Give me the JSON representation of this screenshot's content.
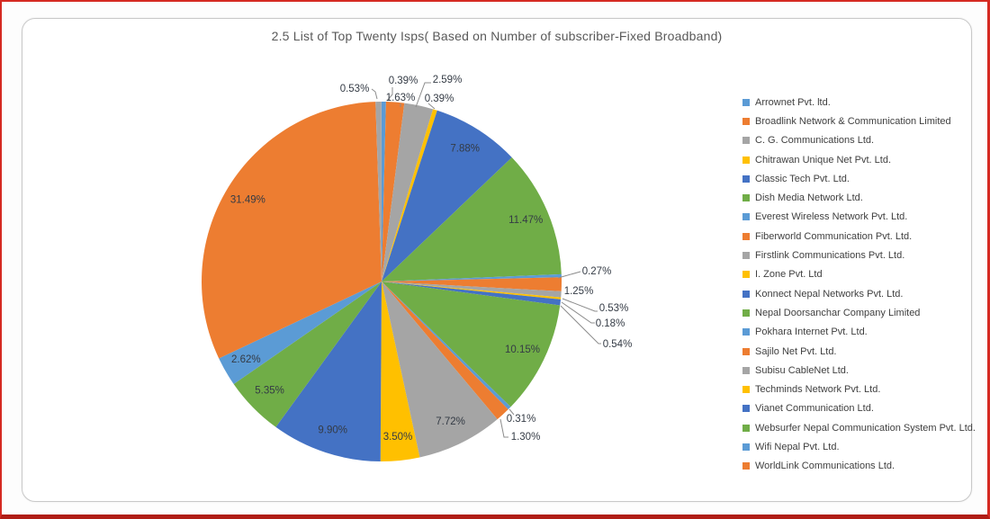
{
  "chart": {
    "title": "2.5 List of Top Twenty Isps( Based on Number of subscriber-Fixed Broadband)"
  },
  "colors": {
    "title_text": "#595959",
    "legend_text": "#3f3f3f",
    "data_label_text": "#343b45",
    "leader_line": "#8c8c8c",
    "chart_border": "#c9c9c9",
    "page_border_red": "#d52a22",
    "page_border_bottom_red": "#b01d15",
    "palette": [
      "#5B9BD5",
      "#ED7D31",
      "#A5A5A5",
      "#FFC000",
      "#4472C4",
      "#70AD47"
    ]
  },
  "chart_data": {
    "type": "pie",
    "title": "2.5 List of Top Twenty Isps( Based on Number of subscriber-Fixed Broadband)",
    "legend_position": "right",
    "start_angle_deg": 0,
    "direction": "clockwise",
    "value_unit": "percent of fixed-broadband subscribers",
    "slices": [
      {
        "label": "Arrownet Pvt. ltd.",
        "value": 0.39,
        "pct_label": "0.39%",
        "color": "#5B9BD5",
        "in_legend": true,
        "label_placement": "outside"
      },
      {
        "label": "Broadlink Network & Communication Limited",
        "value": 1.63,
        "pct_label": "1.63%",
        "color": "#ED7D31",
        "in_legend": true,
        "label_placement": "outside"
      },
      {
        "label": "C. G. Communications Ltd.",
        "value": 2.59,
        "pct_label": "2.59%",
        "color": "#A5A5A5",
        "in_legend": true,
        "label_placement": "outside"
      },
      {
        "label": "Chitrawan Unique Net Pvt. Ltd.",
        "value": 0.39,
        "pct_label": "0.39%",
        "color": "#FFC000",
        "in_legend": true,
        "label_placement": "outside"
      },
      {
        "label": "Classic Tech Pvt. Ltd.",
        "value": 7.88,
        "pct_label": "7.88%",
        "color": "#4472C4",
        "in_legend": true,
        "label_placement": "inside"
      },
      {
        "label": "Dish Media Network Ltd.",
        "value": 11.47,
        "pct_label": "11.47%",
        "color": "#70AD47",
        "in_legend": true,
        "label_placement": "inside"
      },
      {
        "label": "Everest Wireless Network Pvt. Ltd.",
        "value": 0.27,
        "pct_label": "0.27%",
        "color": "#5B9BD5",
        "in_legend": true,
        "label_placement": "outside"
      },
      {
        "label": "Fiberworld Communication Pvt. Ltd.",
        "value": 1.25,
        "pct_label": "1.25%",
        "color": "#ED7D31",
        "in_legend": true,
        "label_placement": "outside"
      },
      {
        "label": "Firstlink Communications Pvt. Ltd.",
        "value": 0.53,
        "pct_label": "0.53%",
        "color": "#A5A5A5",
        "in_legend": true,
        "label_placement": "outside"
      },
      {
        "label": "I. Zone Pvt. Ltd",
        "value": 0.18,
        "pct_label": "0.18%",
        "color": "#FFC000",
        "in_legend": true,
        "label_placement": "outside"
      },
      {
        "label": "Konnect Nepal Networks Pvt. Ltd.",
        "value": 0.54,
        "pct_label": "0.54%",
        "color": "#4472C4",
        "in_legend": true,
        "label_placement": "outside"
      },
      {
        "label": "Nepal Doorsanchar Company Limited",
        "value": 10.15,
        "pct_label": "10.15%",
        "color": "#70AD47",
        "in_legend": true,
        "label_placement": "inside"
      },
      {
        "label": "Pokhara Internet Pvt. Ltd.",
        "value": 0.31,
        "pct_label": "0.31%",
        "color": "#5B9BD5",
        "in_legend": true,
        "label_placement": "outside"
      },
      {
        "label": "Sajilo Net Pvt. Ltd.",
        "value": 1.3,
        "pct_label": "1.30%",
        "color": "#ED7D31",
        "in_legend": true,
        "label_placement": "outside"
      },
      {
        "label": "Subisu CableNet Ltd.",
        "value": 7.72,
        "pct_label": "7.72%",
        "color": "#A5A5A5",
        "in_legend": true,
        "label_placement": "inside"
      },
      {
        "label": "Techminds Network Pvt. Ltd.",
        "value": 3.5,
        "pct_label": "3.50%",
        "color": "#FFC000",
        "in_legend": true,
        "label_placement": "inside"
      },
      {
        "label": "Vianet Communication Ltd.",
        "value": 9.9,
        "pct_label": "9.90%",
        "color": "#4472C4",
        "in_legend": true,
        "label_placement": "inside"
      },
      {
        "label": "Websurfer Nepal Communication System Pvt. Ltd.",
        "value": 5.35,
        "pct_label": "5.35%",
        "color": "#70AD47",
        "in_legend": true,
        "label_placement": "inside"
      },
      {
        "label": "Wifi Nepal Pvt. Ltd.",
        "value": 2.62,
        "pct_label": "2.62%",
        "color": "#5B9BD5",
        "in_legend": true,
        "label_placement": "inside"
      },
      {
        "label": "WorldLink Communications Ltd.",
        "value": 31.49,
        "pct_label": "31.49%",
        "color": "#ED7D31",
        "in_legend": true,
        "label_placement": "inside"
      },
      {
        "label": "",
        "value": 0.53,
        "pct_label": "0.53%",
        "color": "#A5A5A5",
        "in_legend": false,
        "label_placement": "outside"
      }
    ]
  }
}
